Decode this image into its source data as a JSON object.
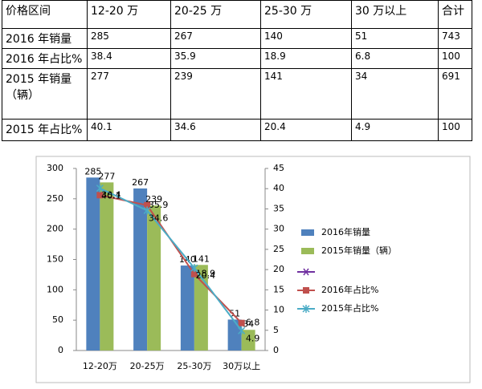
{
  "table": {
    "header": [
      "价格区间",
      "12-20 万",
      "20-25 万",
      "25-30 万",
      "30 万以上",
      "合计"
    ],
    "rows": [
      [
        "2016 年销量",
        285,
        267,
        140,
        51,
        743
      ],
      [
        "2016 年占比%",
        38.4,
        35.9,
        18.9,
        6.8,
        100
      ],
      [
        "2015 年销量（辆）",
        277,
        239,
        141,
        34,
        691
      ],
      [
        "2015 年占比%",
        40.1,
        34.6,
        20.4,
        4.9,
        100
      ]
    ]
  },
  "chart_data": {
    "type": "bar-line",
    "categories": [
      "12-20万",
      "20-25万",
      "25-30万",
      "30万以上"
    ],
    "series": [
      {
        "name": "2016年销量",
        "color": "#4f81bd",
        "type": "bar",
        "values": [
          285,
          267,
          140,
          51
        ]
      },
      {
        "name": "2015年销量（辆）",
        "color": "#9bbb59",
        "type": "bar",
        "values": [
          277,
          239,
          141,
          34
        ]
      },
      {
        "name": "2016年占比%",
        "color": "#c0504d",
        "type": "line",
        "axis": "y2",
        "values": [
          38.4,
          35.9,
          18.9,
          6.8
        ]
      },
      {
        "name": "2015年占比%",
        "color": "#4bacc6",
        "type": "line",
        "axis": "y2",
        "values": [
          40.1,
          34.6,
          20.4,
          4.9
        ]
      }
    ],
    "ylim": [
      0,
      300
    ],
    "yticks": [
      0,
      50,
      100,
      150,
      200,
      250,
      300
    ],
    "y2lim": [
      0,
      45
    ],
    "y2ticks": [
      0,
      5,
      10,
      15,
      20,
      25,
      30,
      35,
      40,
      45
    ]
  }
}
